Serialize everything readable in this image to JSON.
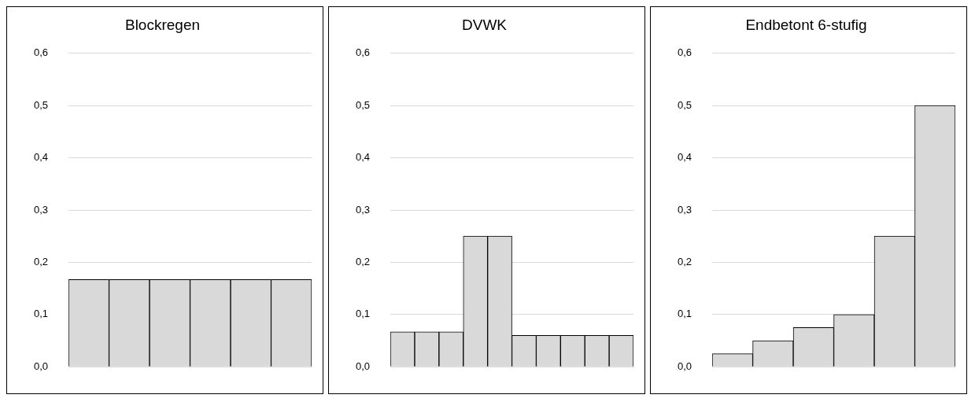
{
  "chart_data": [
    {
      "type": "bar",
      "title": "Blockregen",
      "categories": [
        null,
        null,
        null,
        null,
        null,
        null
      ],
      "values": [
        0.167,
        0.167,
        0.167,
        0.167,
        0.167,
        0.167
      ],
      "color": "#d9d9d9",
      "ylim": [
        0,
        0.6
      ],
      "yticks": [
        {
          "value": 0,
          "label": "0,0"
        },
        {
          "value": 0.1,
          "label": "0,1"
        },
        {
          "value": 0.2,
          "label": "0,2"
        },
        {
          "value": 0.3,
          "label": "0,3"
        },
        {
          "value": 0.4,
          "label": "0,4"
        },
        {
          "value": 0.5,
          "label": "0,5"
        },
        {
          "value": 0.6,
          "label": "0,6"
        }
      ],
      "grid": "y",
      "tick_labels": "y"
    },
    {
      "type": "bar",
      "title": "DVWK",
      "categories": [
        null,
        null,
        null,
        null,
        null,
        null,
        null,
        null,
        null,
        null
      ],
      "values": [
        0.067,
        0.067,
        0.067,
        0.25,
        0.25,
        0.06,
        0.06,
        0.06,
        0.06,
        0.06
      ],
      "color": "#d9d9d9",
      "ylim": [
        0,
        0.6
      ],
      "yticks": [
        {
          "value": 0,
          "label": "0,0"
        },
        {
          "value": 0.1,
          "label": "0,1"
        },
        {
          "value": 0.2,
          "label": "0,2"
        },
        {
          "value": 0.3,
          "label": "0,3"
        },
        {
          "value": 0.4,
          "label": "0,4"
        },
        {
          "value": 0.5,
          "label": "0,5"
        },
        {
          "value": 0.6,
          "label": "0,6"
        }
      ],
      "grid": "y",
      "tick_labels": "y"
    },
    {
      "type": "bar",
      "title": "Endbetont 6-stufig",
      "categories": [
        null,
        null,
        null,
        null,
        null,
        null
      ],
      "values": [
        0.025,
        0.05,
        0.075,
        0.1,
        0.25,
        0.5
      ],
      "color": "#d9d9d9",
      "ylim": [
        0,
        0.6
      ],
      "yticks": [
        {
          "value": 0,
          "label": "0,0"
        },
        {
          "value": 0.1,
          "label": "0,1"
        },
        {
          "value": 0.2,
          "label": "0,2"
        },
        {
          "value": 0.3,
          "label": "0,3"
        },
        {
          "value": 0.4,
          "label": "0,4"
        },
        {
          "value": 0.5,
          "label": "0,5"
        },
        {
          "value": 0.6,
          "label": "0,6"
        }
      ],
      "grid": "y",
      "tick_labels": "y"
    }
  ]
}
